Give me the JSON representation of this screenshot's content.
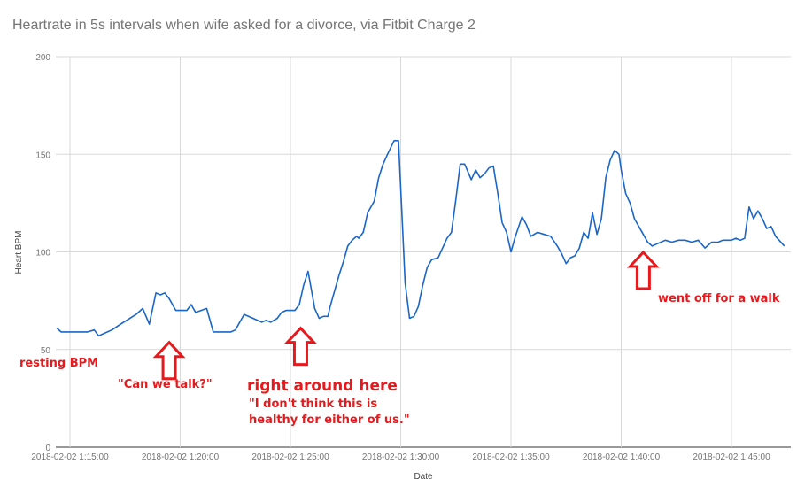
{
  "chart_data": {
    "type": "line",
    "title": "Heartrate in 5s intervals when wife asked for a divorce, via Fitbit Charge 2",
    "xlabel": "Date",
    "ylabel": "Heart BPM",
    "ylim": [
      0,
      200
    ],
    "yticks": [
      0,
      50,
      100,
      150,
      200
    ],
    "xticks": [
      "2018-02-02 1:15:00",
      "2018-02-02 1:20:00",
      "2018-02-02 1:25:00",
      "2018-02-02 1:30:00",
      "2018-02-02 1:35:00",
      "2018-02-02 1:40:00",
      "2018-02-02 1:45:00"
    ],
    "grid": true,
    "legend": "none",
    "colors": {
      "line": "#1a66c9",
      "annotation": "#e8191c",
      "grid": "#d9d9d9",
      "title": "#757575"
    },
    "x_unit": "minutes past 1:00 on 2018-02-02",
    "series": [
      {
        "x": [
          14.4,
          14.6,
          15.8,
          16.1,
          16.3,
          16.5,
          16.9,
          17.3,
          18.0,
          18.3,
          18.6,
          18.9,
          19.1,
          19.3,
          19.5,
          19.8,
          20.0,
          20.1,
          20.3,
          20.5,
          20.7,
          21.2,
          21.4,
          21.5,
          21.6,
          21.8,
          22.0,
          22.3,
          22.5,
          22.9,
          23.3,
          23.7,
          23.9,
          24.1,
          24.4,
          24.6,
          24.8,
          25.0,
          25.2,
          25.4,
          25.6,
          25.8,
          26.1,
          26.3,
          26.5,
          26.7,
          26.8,
          27.0,
          27.2,
          27.4,
          27.6,
          27.8,
          28.0,
          28.1,
          28.3,
          28.4,
          28.5,
          28.6,
          28.8,
          29.0,
          29.2,
          29.4,
          29.7,
          29.9,
          30.2,
          30.4,
          30.6,
          30.8,
          31.0,
          31.2,
          31.4,
          31.7,
          31.9,
          32.1,
          32.3,
          32.5,
          32.7,
          32.9,
          33.2,
          33.4,
          33.6,
          33.8,
          34.0,
          34.2,
          34.4,
          34.6,
          34.8,
          35.0,
          35.2,
          35.5,
          35.7,
          35.9,
          36.2,
          36.5,
          36.8,
          37.1,
          37.3,
          37.5,
          37.7,
          37.9,
          38.1,
          38.3,
          38.5,
          38.7,
          38.9,
          39.1,
          39.3,
          39.5,
          39.7,
          39.9,
          40.0,
          40.2,
          40.4,
          40.6,
          40.8,
          41.0,
          41.2,
          41.4,
          41.6,
          41.8,
          42.0,
          42.3,
          42.6,
          42.9,
          43.2,
          43.5,
          43.8,
          44.1,
          44.4,
          44.6,
          44.8,
          45.0,
          45.2,
          45.4,
          45.6,
          45.8,
          46.0,
          46.2,
          46.4,
          46.6,
          46.8,
          47.0,
          47.4
        ],
        "values": [
          61,
          59,
          59,
          60,
          57,
          58,
          60,
          63,
          68,
          71,
          63,
          79,
          78,
          79,
          76,
          70,
          70,
          70,
          70,
          73,
          69,
          71,
          63,
          59,
          59,
          59,
          59,
          59,
          60,
          68,
          66,
          64,
          65,
          64,
          66,
          69,
          70,
          70,
          70,
          73,
          83,
          90,
          71,
          66,
          67,
          67,
          72,
          80,
          88,
          95,
          103,
          106,
          108,
          107,
          110,
          115,
          120,
          122,
          126,
          138,
          145,
          150,
          157,
          157,
          84,
          66,
          67,
          72,
          83,
          92,
          96,
          97,
          102,
          107,
          110,
          127,
          145,
          145,
          137,
          142,
          138,
          140,
          143,
          144,
          130,
          115,
          110,
          100,
          108,
          118,
          114,
          108,
          110,
          109,
          108,
          103,
          99,
          94,
          97,
          98,
          102,
          110,
          107,
          120,
          109,
          117,
          138,
          147,
          152,
          150,
          142,
          130,
          125,
          117,
          113,
          109,
          105,
          103,
          104,
          105,
          106,
          105,
          106,
          106,
          105,
          106,
          102,
          105,
          105,
          106,
          106,
          106,
          107,
          106,
          107,
          123,
          117,
          121,
          117,
          112,
          113,
          108,
          103
        ]
      }
    ],
    "annotations": [
      {
        "text": "resting BPM",
        "arrow": false
      },
      {
        "text": "\"Can we talk?\"",
        "arrow": true,
        "arrow_x": 19.5,
        "arrow_y": 60
      },
      {
        "text": "right around here",
        "arrow": true,
        "arrow_x": 25.5,
        "arrow_y": 65
      },
      {
        "text": "\"I don't think this is",
        "arrow": false
      },
      {
        "text": "healthy for either of us.\"",
        "arrow": false
      },
      {
        "text": "went off for a walk",
        "arrow": true,
        "arrow_x": 41.0,
        "arrow_y": 100
      }
    ]
  }
}
